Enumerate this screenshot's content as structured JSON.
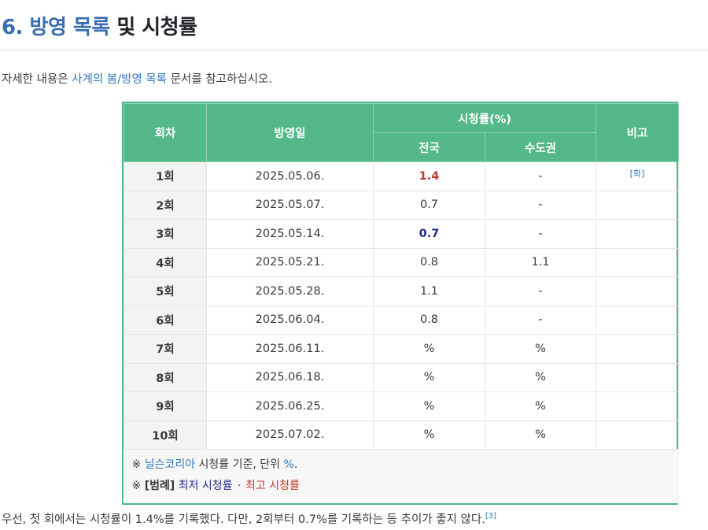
{
  "heading": {
    "number": "6.",
    "link_text": "방영 목록",
    "rest": "및 시청률"
  },
  "intro": {
    "before": "자세한 내용은 ",
    "link": "사계의 봄/방영 목록",
    "after": " 문서를 참고하십시오."
  },
  "table": {
    "headers": {
      "episode": "회차",
      "airdate": "방영일",
      "ratings": "시청률(%)",
      "national": "전국",
      "capital": "수도권",
      "note": "비고"
    },
    "rows": [
      {
        "ep": "1회",
        "date": "2025.05.06.",
        "national": "1.4",
        "capital": "-",
        "note": "[화]"
      },
      {
        "ep": "2회",
        "date": "2025.05.07.",
        "national": "0.7",
        "capital": "-",
        "note": ""
      },
      {
        "ep": "3회",
        "date": "2025.05.14.",
        "national": "0.7",
        "capital": "-",
        "note": ""
      },
      {
        "ep": "4회",
        "date": "2025.05.21.",
        "national": "0.8",
        "capital": "1.1",
        "note": ""
      },
      {
        "ep": "5회",
        "date": "2025.05.28.",
        "national": "1.1",
        "capital": "-",
        "note": ""
      },
      {
        "ep": "6회",
        "date": "2025.06.04.",
        "national": "0.8",
        "capital": "-",
        "note": ""
      },
      {
        "ep": "7회",
        "date": "2025.06.11.",
        "national": "%",
        "capital": "%",
        "note": ""
      },
      {
        "ep": "8회",
        "date": "2025.06.18.",
        "national": "%",
        "capital": "%",
        "note": ""
      },
      {
        "ep": "9회",
        "date": "2025.06.25.",
        "national": "%",
        "capital": "%",
        "note": ""
      },
      {
        "ep": "10회",
        "date": "2025.07.02.",
        "national": "%",
        "capital": "%",
        "note": ""
      }
    ],
    "footer": {
      "line1_mark": "※ ",
      "line1_link": "닐슨코리아",
      "line1_mid": " 시청률 기준, 단위 ",
      "line1_unit": "%",
      "line1_end": ".",
      "line2_mark": "※ ",
      "line2_legend": "[범례]",
      "line2_low": "최저 시청률",
      "line2_dot": "·",
      "line2_high": "최고 시청률"
    }
  },
  "colors": {
    "low": "#1f2a8c",
    "high": "#c0392b",
    "header": "#55b889",
    "link": "#2f77bc"
  },
  "bottom": {
    "text": "우선, 첫 회에서는 시청률이 1.4%를 기록했다. 다만, 2회부터 0.7%를 기록하는 등 추이가 좋지 않다.",
    "ref": "[3]"
  }
}
